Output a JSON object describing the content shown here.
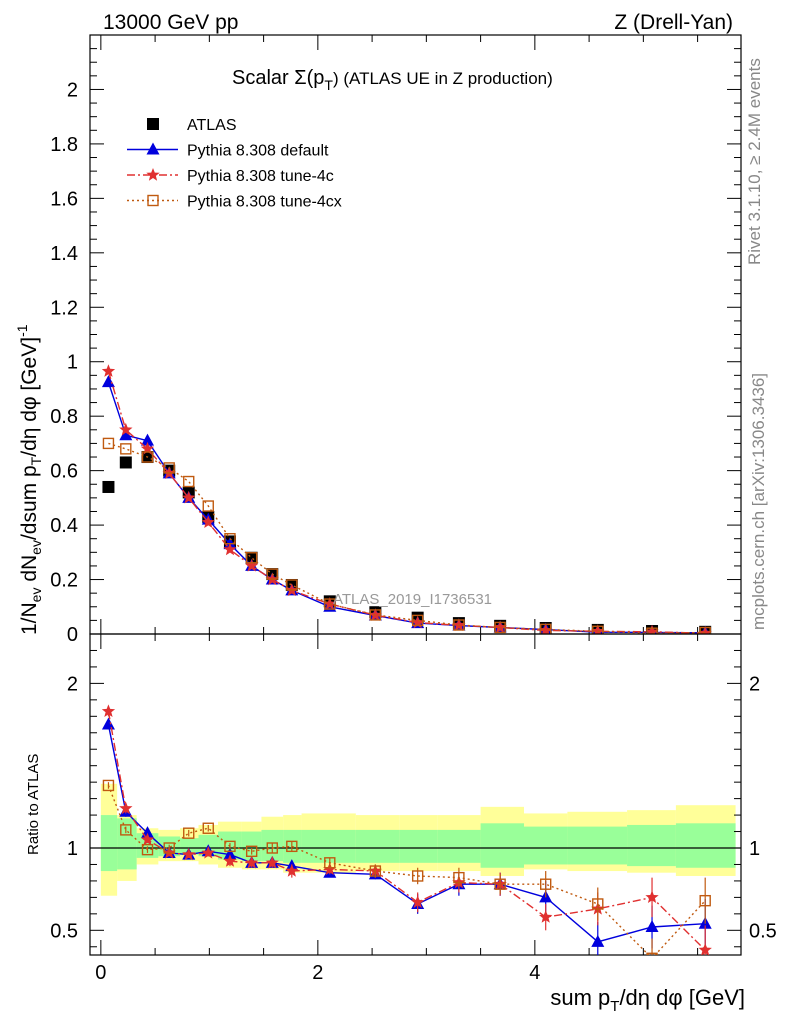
{
  "header": {
    "left": "13000 GeV pp",
    "right": "Z (Drell-Yan)"
  },
  "side_labels": {
    "rivet": "Rivet 3.1.10, ≥ 2.4M events",
    "mcplots": "mcplots.cern.ch [arXiv:1306.3436]"
  },
  "watermark": "ATLAS_2019_I1736531",
  "main_title": {
    "prefix": "Scalar Σ(p",
    "sub": "T",
    "suffix": ") (ATLAS UE in Z production)"
  },
  "axes": {
    "ylabel_main": "1/N_ev dN_ev/dsum p_T/dη dφ [GeV]^-1",
    "ylabel_ratio": "Ratio to ATLAS",
    "xlabel": "sum p_T/dη dφ [GeV]"
  },
  "colors": {
    "atlas": "#000000",
    "default": "#0000dd",
    "tune4c": "#e03030",
    "tune4cx": "#c05a10",
    "band_inner": "#99ff99",
    "band_outer": "#ffff99"
  },
  "chart_data": [
    {
      "type": "line",
      "panel": "main",
      "title": "Scalar Σ(p_T) (ATLAS UE in Z production)",
      "xlim": [
        -0.1,
        5.9
      ],
      "ylim": [
        0,
        2.2
      ],
      "x_ticks": [
        0,
        2,
        4
      ],
      "y_ticks": [
        0,
        0.2,
        0.4,
        0.6,
        0.8,
        1,
        1.2,
        1.4,
        1.6,
        1.8,
        2
      ],
      "legend_position": "top-left",
      "x": [
        0.07,
        0.23,
        0.43,
        0.63,
        0.81,
        0.99,
        1.19,
        1.39,
        1.58,
        1.76,
        2.11,
        2.53,
        2.92,
        3.3,
        3.68,
        4.1,
        4.58,
        5.08,
        5.57
      ],
      "series": [
        {
          "name": "ATLAS",
          "style": "square-filled",
          "values": [
            0.54,
            0.63,
            0.65,
            0.6,
            0.52,
            0.43,
            0.34,
            0.28,
            0.22,
            0.18,
            0.12,
            0.08,
            0.06,
            0.04,
            0.03,
            0.022,
            0.015,
            0.011,
            0.008
          ]
        },
        {
          "name": "Pythia 8.308 default",
          "style": "triangle-solid",
          "values": [
            0.925,
            0.73,
            0.71,
            0.59,
            0.5,
            0.42,
            0.33,
            0.25,
            0.2,
            0.16,
            0.1,
            0.068,
            0.04,
            0.031,
            0.024,
            0.016,
            0.0065,
            0.0058,
            0.0045
          ]
        },
        {
          "name": "Pythia 8.308 tune-4c",
          "style": "star-dashdot",
          "values": [
            0.965,
            0.75,
            0.68,
            0.59,
            0.5,
            0.41,
            0.31,
            0.25,
            0.2,
            0.16,
            0.11,
            0.069,
            0.042,
            0.032,
            0.024,
            0.013,
            0.01,
            0.008,
            0.003
          ]
        },
        {
          "name": "Pythia 8.308 tune-4cx",
          "style": "opensquare-dotted",
          "values": [
            0.7,
            0.68,
            0.65,
            0.61,
            0.56,
            0.47,
            0.35,
            0.28,
            0.22,
            0.18,
            0.11,
            0.07,
            0.05,
            0.033,
            0.024,
            0.017,
            0.01,
            0.003,
            0.0055
          ]
        }
      ]
    },
    {
      "type": "line",
      "panel": "ratio",
      "ylabel": "Ratio to ATLAS",
      "xlim": [
        -0.1,
        5.9
      ],
      "ylim": [
        0.35,
        2.3
      ],
      "x_ticks": [
        0,
        2,
        4
      ],
      "y_ticks": [
        0.5,
        1,
        2
      ],
      "x": [
        0.07,
        0.23,
        0.43,
        0.63,
        0.81,
        0.99,
        1.19,
        1.39,
        1.58,
        1.76,
        2.11,
        2.53,
        2.92,
        3.3,
        3.68,
        4.1,
        4.58,
        5.08,
        5.57
      ],
      "bin_edges": [
        0.0,
        0.15,
        0.33,
        0.53,
        0.73,
        0.9,
        1.08,
        1.3,
        1.48,
        1.68,
        1.85,
        2.35,
        2.75,
        3.1,
        3.5,
        3.9,
        4.3,
        4.85,
        5.3,
        5.85
      ],
      "band_inner": [
        [
          0.86,
          1.2
        ],
        [
          0.87,
          1.18
        ],
        [
          0.94,
          1.09
        ],
        [
          0.95,
          1.07
        ],
        [
          0.96,
          1.06
        ],
        [
          0.95,
          1.08
        ],
        [
          0.93,
          1.1
        ],
        [
          0.92,
          1.1
        ],
        [
          0.92,
          1.11
        ],
        [
          0.91,
          1.11
        ],
        [
          0.91,
          1.11
        ],
        [
          0.91,
          1.11
        ],
        [
          0.91,
          1.11
        ],
        [
          0.91,
          1.11
        ],
        [
          0.88,
          1.15
        ],
        [
          0.9,
          1.13
        ],
        [
          0.9,
          1.13
        ],
        [
          0.89,
          1.14
        ],
        [
          0.88,
          1.15
        ]
      ],
      "band_outer": [
        [
          0.71,
          1.39
        ],
        [
          0.8,
          1.2
        ],
        [
          0.9,
          1.12
        ],
        [
          0.92,
          1.11
        ],
        [
          0.92,
          1.12
        ],
        [
          0.9,
          1.14
        ],
        [
          0.88,
          1.16
        ],
        [
          0.87,
          1.16
        ],
        [
          0.87,
          1.19
        ],
        [
          0.85,
          1.2
        ],
        [
          0.85,
          1.21
        ],
        [
          0.86,
          1.2
        ],
        [
          0.86,
          1.2
        ],
        [
          0.86,
          1.2
        ],
        [
          0.83,
          1.25
        ],
        [
          0.87,
          1.21
        ],
        [
          0.86,
          1.22
        ],
        [
          0.85,
          1.23
        ],
        [
          0.83,
          1.26
        ]
      ],
      "series": [
        {
          "name": "Pythia 8.308 default",
          "style": "triangle-solid",
          "values": [
            1.75,
            1.22,
            1.09,
            0.97,
            0.96,
            0.98,
            0.96,
            0.91,
            0.91,
            0.89,
            0.85,
            0.84,
            0.66,
            0.78,
            0.78,
            0.7,
            0.43,
            0.52,
            0.54
          ],
          "errors": [
            0.03,
            0.03,
            0.02,
            0.02,
            0.02,
            0.02,
            0.03,
            0.03,
            0.03,
            0.03,
            0.02,
            0.03,
            0.06,
            0.07,
            0.07,
            0.1,
            0.12,
            0.13,
            0.15
          ]
        },
        {
          "name": "Pythia 8.308 tune-4c",
          "style": "star-dashdot",
          "values": [
            1.83,
            1.24,
            1.05,
            0.97,
            0.96,
            0.97,
            0.92,
            0.91,
            0.91,
            0.86,
            0.87,
            0.86,
            0.67,
            0.79,
            0.78,
            0.58,
            0.63,
            0.7,
            0.38
          ],
          "errors": [
            0.03,
            0.03,
            0.02,
            0.02,
            0.02,
            0.02,
            0.03,
            0.03,
            0.03,
            0.04,
            0.03,
            0.04,
            0.06,
            0.06,
            0.07,
            0.08,
            0.1,
            0.12,
            0.15
          ]
        },
        {
          "name": "Pythia 8.308 tune-4cx",
          "style": "opensquare-dotted",
          "values": [
            1.38,
            1.11,
            0.99,
            1.0,
            1.09,
            1.12,
            1.01,
            0.98,
            1.0,
            1.01,
            0.91,
            0.86,
            0.83,
            0.82,
            0.78,
            0.78,
            0.66,
            0.33,
            0.68
          ],
          "errors": [
            0.02,
            0.02,
            0.02,
            0.02,
            0.02,
            0.02,
            0.02,
            0.02,
            0.03,
            0.03,
            0.03,
            0.04,
            0.05,
            0.06,
            0.06,
            0.08,
            0.1,
            0.12,
            0.14
          ]
        }
      ]
    }
  ]
}
